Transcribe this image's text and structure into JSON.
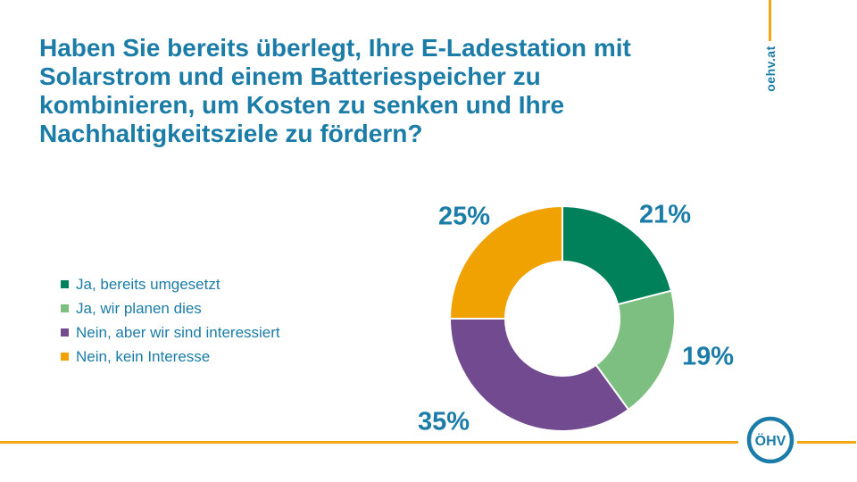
{
  "theme": {
    "teal": "#1B7CA7",
    "orange": "#F2A60F",
    "background": "#FFFFFF"
  },
  "header": {
    "title_lines": [
      "Haben Sie bereits überlegt, Ihre E-Ladestation mit",
      "Solarstrom und einem Batteriespeicher zu",
      "kombinieren, um Kosten zu senken und Ihre",
      "Nachhaltigkeitsziele zu fördern?"
    ]
  },
  "brand": {
    "url_text": "oehv.at",
    "logo_monogram": "ÖHV"
  },
  "chart_data": {
    "type": "pie",
    "subtype": "donut",
    "title": "",
    "categories": [
      "Ja, bereits umgesetzt",
      "Ja, wir planen dies",
      "Nein, aber wir sind interessiert",
      "Nein, kein Interesse"
    ],
    "values": [
      21,
      19,
      35,
      25
    ],
    "value_labels": [
      "21%",
      "19%",
      "35%",
      "25%"
    ],
    "colors": [
      "#00815A",
      "#7DBF80",
      "#714A90",
      "#F0A202"
    ],
    "start_angle_deg": 0,
    "direction": "clockwise",
    "inner_radius_ratio": 0.51,
    "separator_color": "#FFFFFF",
    "legend_position": "left",
    "label_color": "#1B7CA7"
  }
}
